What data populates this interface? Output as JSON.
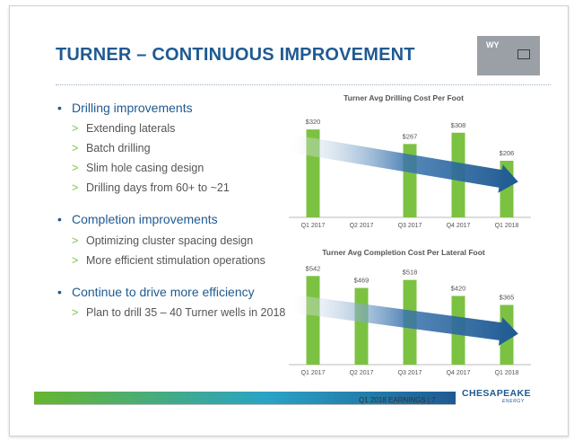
{
  "slide": {
    "title": "TURNER – CONTINUOUS IMPROVEMENT",
    "state_label": "WY"
  },
  "bullets": [
    {
      "text": "Drilling improvements",
      "subs": [
        "Extending laterals",
        "Batch drilling",
        "Slim hole casing design",
        "Drilling days from 60+ to ~21"
      ]
    },
    {
      "text": "Completion improvements",
      "subs": [
        "Optimizing cluster spacing design",
        "More efficient stimulation operations"
      ]
    },
    {
      "text": "Continue to drive more efficiency",
      "subs": [
        "Plan to drill 35 – 40 Turner wells in 2018"
      ]
    }
  ],
  "markers": {
    "bullet": "•",
    "sub": ">"
  },
  "footer": {
    "text": "Q1 2018 EARNINGS  |  7",
    "logo": "CHESAPEAKE",
    "logo_sub": "ENERGY"
  },
  "colors": {
    "bar": "#7cc242",
    "arrow": "#1f5a92",
    "title": "#1f5a92"
  },
  "chart_data": [
    {
      "type": "bar",
      "title": "Turner Avg Drilling Cost Per Foot",
      "categories": [
        "Q1 2017",
        "Q2 2017",
        "Q3 2017",
        "Q4 2017",
        "Q1 2018"
      ],
      "values": [
        320,
        null,
        267,
        308,
        206
      ],
      "value_labels": [
        "$320",
        "",
        "$267",
        "$308",
        "$206"
      ],
      "ylim": [
        0,
        340
      ],
      "grid": false,
      "annotation": "downward trend arrow"
    },
    {
      "type": "bar",
      "title": "Turner Avg Completion Cost Per Lateral Foot",
      "categories": [
        "Q1 2017",
        "Q2 2017",
        "Q3 2017",
        "Q4 2017",
        "Q1 2018"
      ],
      "values": [
        542,
        469,
        518,
        420,
        365
      ],
      "value_labels": [
        "$542",
        "$469",
        "$518",
        "$420",
        "$365"
      ],
      "ylim": [
        0,
        560
      ],
      "grid": false,
      "annotation": "downward trend arrow"
    }
  ]
}
